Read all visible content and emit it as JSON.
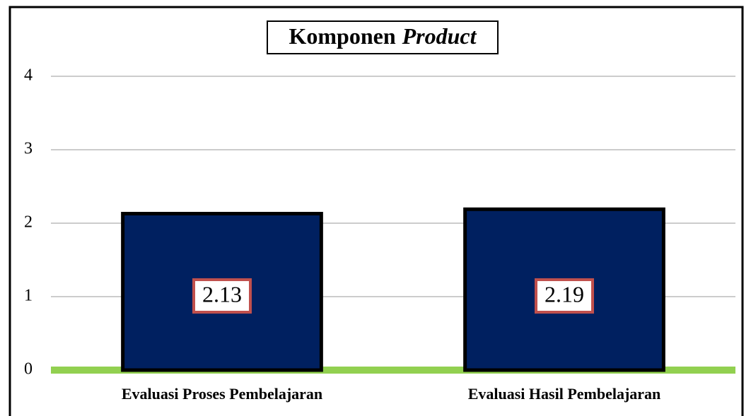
{
  "chart_data": {
    "type": "bar",
    "title": "Komponen",
    "title_italic": "Product",
    "categories": [
      "Evaluasi Proses Pembelajaran",
      "Evaluasi Hasil Pembelajaran"
    ],
    "values": [
      2.13,
      2.19
    ],
    "color": "#002060",
    "baseline_color": "#92d050",
    "label_border_color": "#c0504d",
    "ylim": [
      0,
      4
    ],
    "yticks": [
      0,
      1,
      2,
      3,
      4
    ],
    "grid": true
  }
}
